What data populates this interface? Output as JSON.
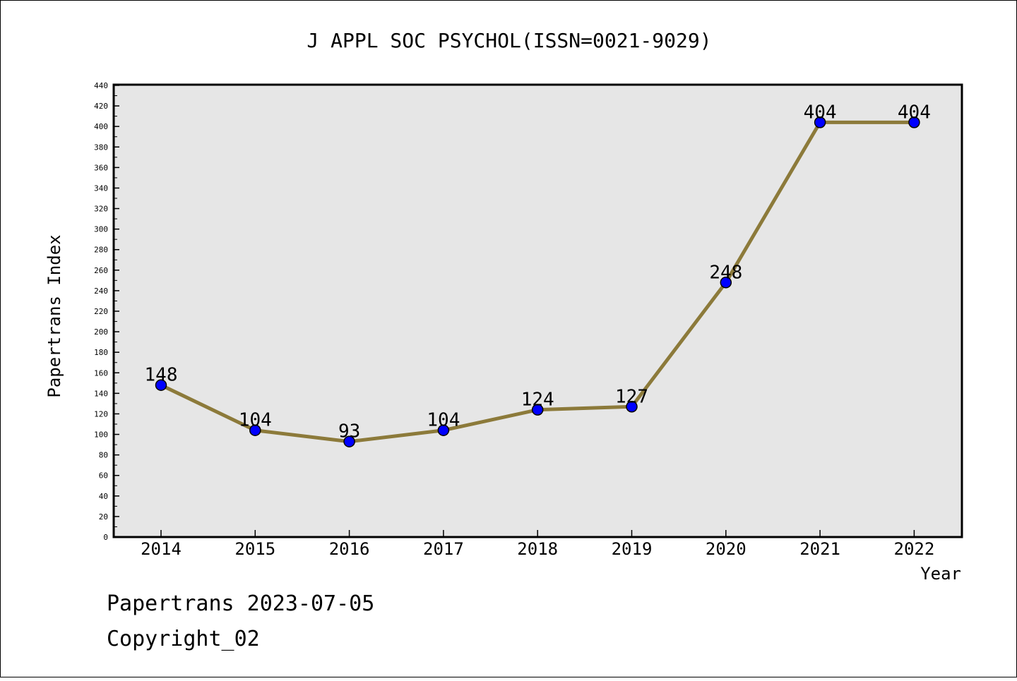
{
  "chart_data": {
    "type": "line",
    "title": "J APPL SOC PSYCHOL(ISSN=0021-9029)",
    "xlabel": "Year",
    "ylabel": "Papertrans Index",
    "categories": [
      "2014",
      "2015",
      "2016",
      "2017",
      "2018",
      "2019",
      "2020",
      "2021",
      "2022"
    ],
    "values": [
      148,
      104,
      93,
      104,
      124,
      127,
      248,
      404,
      404
    ],
    "ylim": [
      0,
      440
    ],
    "y_tick_step": 20,
    "grid": false,
    "legend": "none",
    "colors": {
      "line": "#8c7a3a",
      "marker": "#0000ff",
      "plot_bg": "#e6e6e6"
    }
  },
  "footer": {
    "line1": "Papertrans 2023-07-05",
    "line2": "Copyright_02"
  }
}
